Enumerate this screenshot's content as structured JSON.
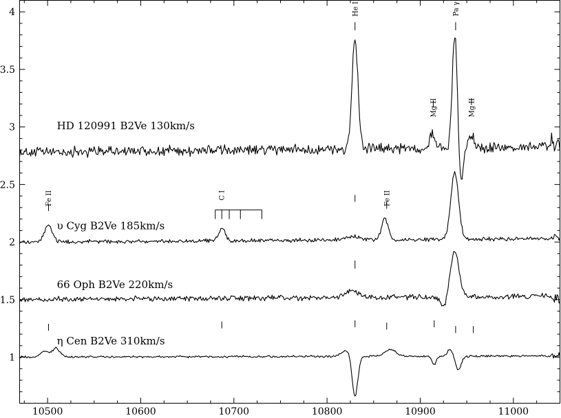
{
  "chart_data": {
    "type": "line",
    "title": "",
    "xlabel": "",
    "ylabel": "",
    "xlim": [
      10470,
      11050
    ],
    "ylim": [
      0.6,
      4.1
    ],
    "x_ticks": [
      10500,
      10600,
      10700,
      10800,
      10900,
      11000
    ],
    "y_ticks": [
      1,
      1.5,
      2,
      2.5,
      3,
      3.5,
      4
    ],
    "y_tick_labels": [
      "1",
      "1.5",
      "2",
      "2.5",
      "3",
      "3.5",
      "4"
    ],
    "grid": false,
    "series": [
      {
        "label": "HD 120991   B2Ve   130km/s",
        "label_pos": [
          10510,
          2.98
        ],
        "baseline": 2.78,
        "slope": 8e-05,
        "noise": 0.035,
        "features": [
          {
            "x": 10830,
            "amp": 0.96,
            "sigma": 3.2
          },
          {
            "x": 10913,
            "amp": 0.14,
            "sigma": 2.5
          },
          {
            "x": 10937,
            "amp": 1.0,
            "sigma": 2.6
          },
          {
            "x": 10944,
            "amp": -0.3,
            "sigma": 2.2
          },
          {
            "x": 10955,
            "amp": 0.12,
            "sigma": 3
          }
        ]
      },
      {
        "label": "υ Cyg   B2Ve  185km/s",
        "label_pos": [
          10510,
          2.11
        ],
        "baseline": 2.0,
        "slope": 5e-05,
        "noise": 0.013,
        "features": [
          {
            "x": 10501,
            "amp": 0.15,
            "sigma": 4
          },
          {
            "x": 10687,
            "amp": 0.11,
            "sigma": 3.5
          },
          {
            "x": 10828,
            "amp": 0.03,
            "sigma": 8
          },
          {
            "x": 10862,
            "amp": 0.18,
            "sigma": 3.5
          },
          {
            "x": 10937,
            "amp": 0.58,
            "sigma": 4.2
          }
        ]
      },
      {
        "label": "66 Oph   B2Ve   220km/s",
        "label_pos": [
          10510,
          1.6
        ],
        "baseline": 1.5,
        "slope": 5e-05,
        "noise": 0.018,
        "features": [
          {
            "x": 10826,
            "amp": 0.06,
            "sigma": 8
          },
          {
            "x": 10925,
            "amp": -0.1,
            "sigma": 3
          },
          {
            "x": 10937,
            "amp": 0.4,
            "sigma": 4.5
          }
        ]
      },
      {
        "label": "η Cen   B2Ve  310km/s",
        "label_pos": [
          10510,
          1.11
        ],
        "baseline": 1.0,
        "slope": 2e-05,
        "noise": 0.007,
        "features": [
          {
            "x": 10497,
            "amp": 0.05,
            "sigma": 4
          },
          {
            "x": 10509,
            "amp": 0.08,
            "sigma": 4
          },
          {
            "x": 10820,
            "amp": 0.05,
            "sigma": 5
          },
          {
            "x": 10830,
            "amp": -0.35,
            "sigma": 3
          },
          {
            "x": 10868,
            "amp": 0.06,
            "sigma": 6
          },
          {
            "x": 10915,
            "amp": -0.07,
            "sigma": 2.5
          },
          {
            "x": 10932,
            "amp": 0.06,
            "sigma": 3
          },
          {
            "x": 10941,
            "amp": -0.12,
            "sigma": 3
          }
        ]
      }
    ],
    "annotations": [
      {
        "text": "He I",
        "x": 10830,
        "y": 4.09
      },
      {
        "text": "Pa γ",
        "x": 10938,
        "y": 4.09
      },
      {
        "text": "Mg II",
        "x": 10914,
        "y": 3.25
      },
      {
        "text": "Mg II",
        "x": 10955,
        "y": 3.25
      },
      {
        "text": "Fe II",
        "x": 10501,
        "y": 2.45
      },
      {
        "text": "C I",
        "x": 10687,
        "y": 2.45
      },
      {
        "text": "Fe II",
        "x": 10864,
        "y": 2.45
      }
    ],
    "marks": [
      {
        "x": 10830,
        "y1": 3.84,
        "y2": 3.91
      },
      {
        "x": 10938,
        "y1": 3.84,
        "y2": 3.91
      },
      {
        "x": 10914,
        "y1": 3.17,
        "y2": 3.23
      },
      {
        "x": 10955,
        "y1": 3.19,
        "y2": 3.25
      },
      {
        "x": 10501,
        "y1": 2.27,
        "y2": 2.33
      },
      {
        "x": 10830,
        "y1": 2.35,
        "y2": 2.41
      },
      {
        "x": 10864,
        "y1": 2.29,
        "y2": 2.35
      },
      {
        "x": 10830,
        "y1": 1.77,
        "y2": 1.84
      },
      {
        "x": 10501,
        "y1": 1.23,
        "y2": 1.29
      },
      {
        "x": 10687,
        "y1": 1.25,
        "y2": 1.31
      },
      {
        "x": 10830,
        "y1": 1.26,
        "y2": 1.32
      },
      {
        "x": 10864,
        "y1": 1.24,
        "y2": 1.3
      },
      {
        "x": 10915,
        "y1": 1.26,
        "y2": 1.32
      },
      {
        "x": 10938,
        "y1": 1.21,
        "y2": 1.27
      },
      {
        "x": 10957,
        "y1": 1.21,
        "y2": 1.27
      }
    ],
    "ci_bracket": {
      "y": 2.28,
      "drop": 0.08,
      "x": [
        10680,
        10687,
        10695,
        10707,
        10730
      ]
    }
  }
}
